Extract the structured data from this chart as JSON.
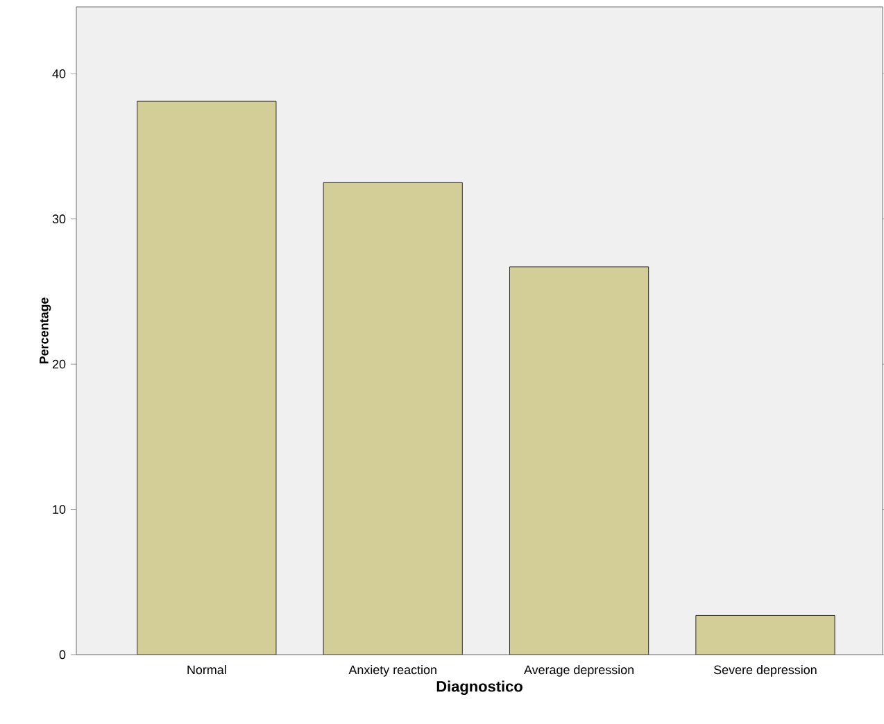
{
  "chart_data": {
    "type": "bar",
    "xlabel": "Diagnostico",
    "ylabel": "Percentage",
    "categories": [
      "Normal",
      "Anxiety reaction",
      "Average depression",
      "Severe depression"
    ],
    "values": [
      38.1,
      32.5,
      26.7,
      2.7
    ],
    "color": "#d3ce97",
    "ylim": [
      0,
      44.6
    ],
    "yticks": [
      0,
      10,
      20,
      30,
      40
    ],
    "grid": false
  }
}
